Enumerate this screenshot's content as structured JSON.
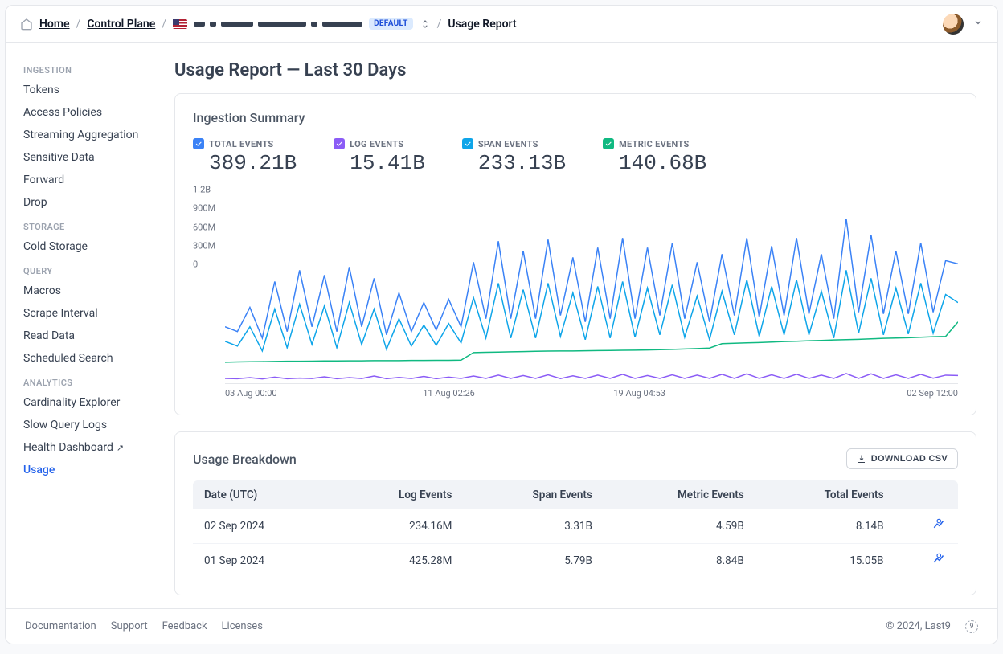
{
  "breadcrumb": {
    "home": "Home",
    "control_plane": "Control Plane",
    "default_chip": "DEFAULT",
    "page": "Usage Report"
  },
  "sidebar": {
    "groups": [
      {
        "label": "INGESTION",
        "items": [
          {
            "label": "Tokens"
          },
          {
            "label": "Access Policies"
          },
          {
            "label": "Streaming Aggregation"
          },
          {
            "label": "Sensitive Data"
          },
          {
            "label": "Forward"
          },
          {
            "label": "Drop"
          }
        ]
      },
      {
        "label": "STORAGE",
        "items": [
          {
            "label": "Cold Storage"
          }
        ]
      },
      {
        "label": "QUERY",
        "items": [
          {
            "label": "Macros"
          },
          {
            "label": "Scrape Interval"
          },
          {
            "label": "Read Data"
          },
          {
            "label": "Scheduled Search"
          }
        ]
      },
      {
        "label": "ANALYTICS",
        "items": [
          {
            "label": "Cardinality Explorer"
          },
          {
            "label": "Slow Query Logs"
          },
          {
            "label": "Health Dashboard",
            "external": true
          },
          {
            "label": "Usage",
            "active": true
          }
        ]
      }
    ]
  },
  "page_title": "Usage Report — Last 30 Days",
  "ingestion": {
    "title": "Ingestion Summary",
    "metrics": [
      {
        "key": "total",
        "label": "TOTAL EVENTS",
        "value": "389.21B",
        "color": "#3b82f6"
      },
      {
        "key": "log",
        "label": "LOG EVENTS",
        "value": "15.41B",
        "color": "#8b5cf6"
      },
      {
        "key": "span",
        "label": "SPAN EVENTS",
        "value": "233.13B",
        "color": "#0ea5e9"
      },
      {
        "key": "metric",
        "label": "METRIC EVENTS",
        "value": "140.68B",
        "color": "#10b981"
      }
    ],
    "chart": {
      "ylim": [
        0,
        1200
      ],
      "yticks": [
        {
          "v": 0,
          "label": "0"
        },
        {
          "v": 300,
          "label": "300M"
        },
        {
          "v": 600,
          "label": "600M"
        },
        {
          "v": 900,
          "label": "900M"
        },
        {
          "v": 1200,
          "label": "1.2B"
        }
      ],
      "xticks": [
        {
          "p": 0.0,
          "label": "03 Aug 00:00"
        },
        {
          "p": 0.27,
          "label": "11 Aug 02:26"
        },
        {
          "p": 0.53,
          "label": "19 Aug 04:53"
        },
        {
          "p": 1.0,
          "label": "02 Sep 12:00",
          "align": "right"
        }
      ],
      "series": {
        "total": {
          "color": "#3b82f6",
          "points": [
            350,
            320,
            470,
            280,
            630,
            320,
            700,
            350,
            670,
            320,
            720,
            350,
            650,
            300,
            560,
            320,
            500,
            330,
            520,
            350,
            750,
            400,
            880,
            400,
            820,
            400,
            890,
            420,
            780,
            380,
            840,
            400,
            900,
            400,
            840,
            420,
            870,
            400,
            750,
            380,
            800,
            420,
            900,
            410,
            850,
            420,
            900,
            430,
            800,
            400,
            1020,
            440,
            920,
            430,
            820,
            430,
            870,
            440,
            760,
            740
          ]
        },
        "span": {
          "color": "#0ea5e9",
          "points": [
            260,
            230,
            350,
            200,
            460,
            220,
            490,
            240,
            480,
            220,
            500,
            240,
            460,
            210,
            400,
            230,
            360,
            235,
            370,
            250,
            530,
            280,
            620,
            280,
            580,
            280,
            620,
            290,
            560,
            270,
            600,
            280,
            630,
            285,
            590,
            300,
            610,
            285,
            540,
            270,
            570,
            300,
            640,
            290,
            600,
            300,
            640,
            300,
            570,
            280,
            700,
            310,
            650,
            300,
            590,
            305,
            620,
            310,
            550,
            500
          ]
        },
        "metric": {
          "color": "#10b981",
          "points": [
            130,
            132,
            133,
            134,
            135,
            136,
            136,
            137,
            138,
            138,
            139,
            139,
            140,
            140,
            140,
            141,
            141,
            142,
            142,
            143,
            190,
            192,
            193,
            195,
            196,
            198,
            199,
            200,
            200,
            201,
            202,
            203,
            204,
            205,
            206,
            208,
            210,
            212,
            215,
            218,
            245,
            248,
            250,
            252,
            255,
            258,
            260,
            263,
            265,
            268,
            270,
            272,
            275,
            278,
            280,
            282,
            285,
            288,
            290,
            380
          ]
        },
        "log": {
          "color": "#8b5cf6",
          "points": [
            30,
            28,
            35,
            27,
            38,
            28,
            32,
            29,
            40,
            28,
            35,
            29,
            45,
            28,
            36,
            29,
            42,
            28,
            38,
            30,
            45,
            30,
            50,
            30,
            48,
            30,
            52,
            29,
            46,
            30,
            50,
            30,
            55,
            30,
            48,
            30,
            52,
            30,
            50,
            30,
            55,
            30,
            58,
            30,
            52,
            30,
            56,
            30,
            50,
            30,
            60,
            30,
            58,
            30,
            52,
            30,
            55,
            31,
            50,
            48
          ]
        }
      }
    }
  },
  "breakdown": {
    "title": "Usage Breakdown",
    "download": "DOWNLOAD CSV",
    "columns": [
      "Date (UTC)",
      "Log Events",
      "Span Events",
      "Metric Events",
      "Total Events",
      ""
    ],
    "rows": [
      {
        "date": "02 Sep 2024",
        "log": "234.16M",
        "span": "3.31B",
        "metric": "4.59B",
        "total": "8.14B"
      },
      {
        "date": "01 Sep 2024",
        "log": "425.28M",
        "span": "5.79B",
        "metric": "8.84B",
        "total": "15.05B"
      }
    ]
  },
  "footer": {
    "links": [
      "Documentation",
      "Support",
      "Feedback",
      "Licenses"
    ],
    "copyright": "© 2024, Last9"
  }
}
